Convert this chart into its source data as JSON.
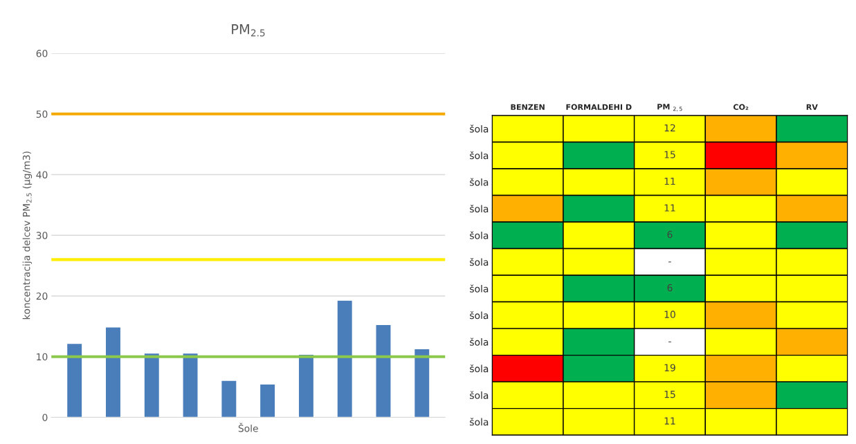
{
  "chart_data": [
    {
      "type": "bar",
      "title": "PM$_{2.5}$",
      "xlabel": "Šole",
      "ylabel": "koncentracija delcev PM$_{2.5}$ (µg/m3)",
      "categories": [
        null,
        null,
        null,
        null,
        null,
        null,
        null,
        null,
        null,
        null
      ],
      "values": [
        12.2,
        14.9,
        10.6,
        10.6,
        6.1,
        5.5,
        10.4,
        19.3,
        15.3,
        11.3
      ],
      "color": "#4a7ebb",
      "ylim": [
        0,
        60
      ],
      "yticks": [
        0,
        10,
        20,
        30,
        40,
        50,
        60
      ],
      "grid": "y",
      "ref_lines": [
        {
          "axis": "y",
          "value": 50,
          "color": "#f5a800"
        },
        {
          "axis": "y",
          "value": 26,
          "color": "#ffee00"
        },
        {
          "axis": "y",
          "value": 10,
          "color": "#8cc84b"
        }
      ]
    },
    {
      "type": "heatmap",
      "categories": [
        "BENZEN",
        "FORMALDEHI D",
        "PM $_{2,5}$",
        "CO₂",
        "RV"
      ],
      "y_categories": [
        "šola",
        "šola",
        "šola",
        "šola",
        "šola",
        "šola",
        "šola",
        "šola",
        "šola",
        "šola",
        "šola",
        "šola"
      ],
      "cells": [
        [
          null,
          null,
          12,
          null,
          null
        ],
        [
          null,
          null,
          15,
          null,
          null
        ],
        [
          null,
          null,
          11,
          null,
          null
        ],
        [
          null,
          null,
          11,
          null,
          null
        ],
        [
          null,
          null,
          6,
          null,
          null
        ],
        [
          null,
          null,
          null,
          null,
          null
        ],
        [
          null,
          null,
          6,
          null,
          null
        ],
        [
          null,
          null,
          10,
          null,
          null
        ],
        [
          null,
          null,
          null,
          null,
          null
        ],
        [
          null,
          null,
          19,
          null,
          null
        ],
        [
          null,
          null,
          15,
          null,
          null
        ],
        [
          null,
          null,
          11,
          null,
          null
        ]
      ],
      "cell_labels": [
        [
          null,
          null,
          "12",
          null,
          null
        ],
        [
          null,
          null,
          "15",
          null,
          null
        ],
        [
          null,
          null,
          "11",
          null,
          null
        ],
        [
          null,
          null,
          "11",
          null,
          null
        ],
        [
          null,
          null,
          "6",
          null,
          null
        ],
        [
          null,
          null,
          "-",
          null,
          null
        ],
        [
          null,
          null,
          "6",
          null,
          null
        ],
        [
          null,
          null,
          "10",
          null,
          null
        ],
        [
          null,
          null,
          "-",
          null,
          null
        ],
        [
          null,
          null,
          "19",
          null,
          null
        ],
        [
          null,
          null,
          "15",
          null,
          null
        ],
        [
          null,
          null,
          "11",
          null,
          null
        ]
      ],
      "colors": [
        [
          "#ffff00",
          "#ffff00",
          "#ffff00",
          "#ffb000",
          "#00b050"
        ],
        [
          "#ffff00",
          "#00b050",
          "#ffff00",
          "#ff0000",
          "#ffb000"
        ],
        [
          "#ffff00",
          "#ffff00",
          "#ffff00",
          "#ffb000",
          "#ffff00"
        ],
        [
          "#ffb000",
          "#00b050",
          "#ffff00",
          "#ffff00",
          "#ffb000"
        ],
        [
          "#00b050",
          "#ffff00",
          "#00b050",
          "#ffff00",
          "#00b050"
        ],
        [
          "#ffff00",
          "#ffff00",
          "#ffffff",
          "#ffff00",
          "#ffff00"
        ],
        [
          "#ffff00",
          "#00b050",
          "#00b050",
          "#ffff00",
          "#ffff00"
        ],
        [
          "#ffff00",
          "#ffff00",
          "#ffff00",
          "#ffb000",
          "#ffff00"
        ],
        [
          "#ffff00",
          "#00b050",
          "#ffffff",
          "#ffff00",
          "#ffb000"
        ],
        [
          "#ff0000",
          "#00b050",
          "#ffff00",
          "#ffb000",
          "#ffff00"
        ],
        [
          "#ffff00",
          "#ffff00",
          "#ffff00",
          "#ffb000",
          "#00b050"
        ],
        [
          "#ffff00",
          "#ffff00",
          "#ffff00",
          "#ffff00",
          "#ffff00"
        ]
      ]
    }
  ]
}
